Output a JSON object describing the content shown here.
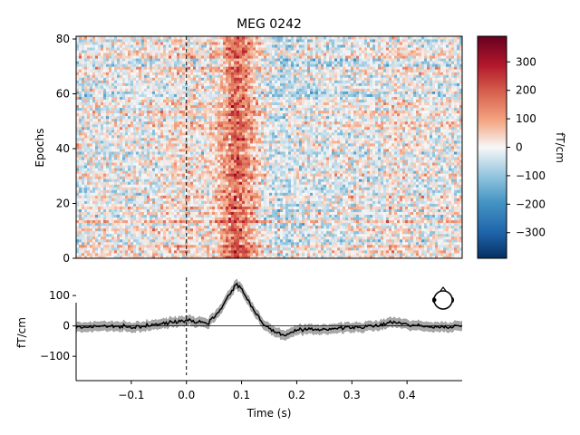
{
  "chart_data": [
    {
      "type": "heatmap",
      "title": "MEG 0242",
      "ylabel": "Epochs",
      "xlim": [
        -0.2,
        0.5
      ],
      "ylim": [
        0,
        81
      ],
      "y_ticks": [
        0,
        20,
        40,
        60,
        80
      ],
      "n_epochs": 81,
      "stimulus_onset": 0.0,
      "colormap": "RdBu_r",
      "colorbar": {
        "label": "fT/cm",
        "range": [
          -390,
          390
        ],
        "ticks": [
          300,
          200,
          100,
          0,
          -100,
          -200,
          -300
        ],
        "tick_labels": [
          "300",
          "200",
          "100",
          "0",
          "−100",
          "−200",
          "−300"
        ]
      }
    },
    {
      "type": "line",
      "xlabel": "Time (s)",
      "ylabel": "fT/cm",
      "xlim": [
        -0.2,
        0.5
      ],
      "ylim": [
        -180,
        160
      ],
      "x_ticks": [
        -0.1,
        0.0,
        0.1,
        0.2,
        0.3,
        0.4
      ],
      "x_tick_labels": [
        "−0.1",
        "0.0",
        "0.1",
        "0.2",
        "0.3",
        "0.4"
      ],
      "y_ticks": [
        100,
        0,
        -100
      ],
      "y_tick_labels": [
        "100",
        "0",
        "−100"
      ],
      "series": [
        {
          "x": [
            -0.2,
            -0.15,
            -0.1,
            -0.05,
            0.0,
            0.02,
            0.04,
            0.06,
            0.08,
            0.09,
            0.1,
            0.12,
            0.14,
            0.16,
            0.18,
            0.2,
            0.25,
            0.3,
            0.35,
            0.37,
            0.4,
            0.45,
            0.5
          ],
          "y": [
            -5,
            0,
            -5,
            5,
            20,
            15,
            10,
            50,
            110,
            140,
            120,
            60,
            5,
            -20,
            -30,
            -15,
            -10,
            -5,
            0,
            15,
            5,
            -5,
            0
          ]
        }
      ],
      "band_halfwidth": 15
    }
  ]
}
